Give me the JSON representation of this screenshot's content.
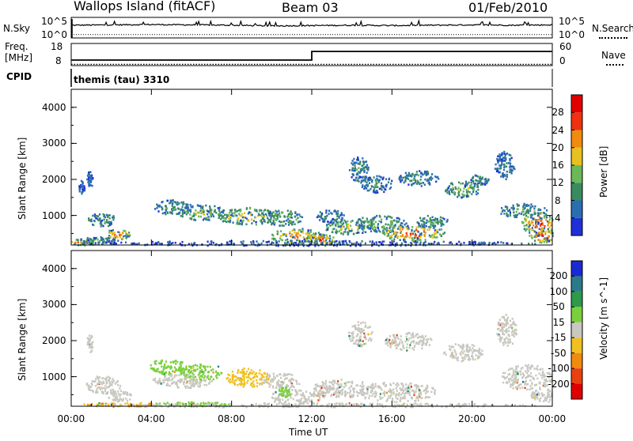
{
  "header": {
    "station": "Wallops Island (fitACF)",
    "beam": "Beam 03",
    "date": "01/Feb/2010"
  },
  "top_panels": {
    "nsky_label": "N.Sky",
    "nsky_tick_top": "10^5",
    "nsky_tick_bottom": "10^0",
    "nsearch_label": "N.Search",
    "nsearch_tick_top": "10^5",
    "nsearch_tick_bottom": "10^0",
    "freq_label_line1": "Freq.",
    "freq_label_line2": "[MHz]",
    "freq_tick_top": "18",
    "freq_tick_bottom": "8",
    "nave_label": "Nave",
    "nave_tick_top": "60",
    "nave_tick_bottom": "0",
    "cpid_label": "CPID",
    "cpid_value": "themis (tau) 3310"
  },
  "axes": {
    "ylabel": "Slant Range [km]",
    "y_ticks": [
      "1000",
      "2000",
      "3000",
      "4000"
    ],
    "x_ticks": [
      "00:00",
      "04:00",
      "08:00",
      "12:00",
      "16:00",
      "20:00",
      "00:00"
    ],
    "xlabel": "Time UT"
  },
  "power_colorbar": {
    "label": "Power [dB]",
    "ticks": [
      "4",
      "8",
      "12",
      "16",
      "20",
      "24",
      "28"
    ],
    "colors": [
      "#2030d8",
      "#2a6eb0",
      "#3a8a60",
      "#6ab85a",
      "#e8c020",
      "#f08a10",
      "#f03010",
      "#e00000"
    ]
  },
  "velocity_colorbar": {
    "label": "Velocity [m s^-1]",
    "ticks": [
      "200",
      "100",
      "50",
      "15",
      "-15",
      "-50",
      "-100",
      "-200"
    ],
    "colors": [
      "#1a2ad0",
      "#2a7a8a",
      "#2e9a4a",
      "#7ad03a",
      "#c8c8c0",
      "#f0c020",
      "#f08a10",
      "#e84010",
      "#e00000"
    ]
  },
  "chart_data": [
    {
      "type": "line",
      "title": "N.Sky / N.Search",
      "x": [
        "00:00",
        "02:00",
        "04:00",
        "06:00",
        "08:00",
        "10:00",
        "12:00",
        "14:00",
        "16:00",
        "18:00",
        "20:00",
        "22:00",
        "24:00"
      ],
      "series": [
        {
          "name": "N.Sky",
          "values": [
            3.2,
            3.3,
            3.4,
            3.3,
            3.2,
            3.0,
            3.1,
            3.2,
            3.1,
            3.2,
            3.3,
            3.2,
            3.3
          ]
        },
        {
          "name": "N.Search",
          "values": [
            0.5,
            0.5,
            0.5,
            0.5,
            0.5,
            0.5,
            0.5,
            0.5,
            0.5,
            0.5,
            0.5,
            0.5,
            0.5
          ]
        }
      ],
      "ylim": [
        0,
        5
      ]
    },
    {
      "type": "line",
      "title": "Freq. / Nave",
      "x": [
        "00:00",
        "12:00",
        "12:00",
        "24:00"
      ],
      "series": [
        {
          "name": "Freq. [MHz]",
          "values": [
            10.5,
            10.5,
            14.4,
            14.4
          ]
        },
        {
          "name": "Nave",
          "values": [
            10,
            10,
            10,
            10
          ]
        }
      ],
      "ylim": [
        8,
        18
      ]
    },
    {
      "type": "heatmap",
      "title": "Power [dB]",
      "xlabel": "Time UT",
      "ylabel": "Slant Range [km]",
      "xlim": [
        0,
        24
      ],
      "ylim": [
        180,
        4500
      ],
      "blobs": [
        {
          "t": 0.9,
          "r": 2000,
          "dt": 0.15,
          "dr": 250,
          "v": 8
        },
        {
          "t": 0.5,
          "r": 1800,
          "dt": 0.15,
          "dr": 200,
          "v": 6
        },
        {
          "t": 1.5,
          "r": 900,
          "dt": 0.7,
          "dr": 200,
          "v": 14
        },
        {
          "t": 2.3,
          "r": 500,
          "dt": 0.6,
          "dr": 160,
          "v": 27
        },
        {
          "t": 0.5,
          "r": 280,
          "dt": 0.6,
          "dr": 90,
          "v": 26
        },
        {
          "t": 1.3,
          "r": 320,
          "dt": 1.0,
          "dr": 120,
          "v": 14
        },
        {
          "t": 5.0,
          "r": 1250,
          "dt": 1.0,
          "dr": 200,
          "v": 12
        },
        {
          "t": 6.5,
          "r": 1100,
          "dt": 1.2,
          "dr": 220,
          "v": 18
        },
        {
          "t": 8.8,
          "r": 1000,
          "dt": 1.6,
          "dr": 240,
          "v": 22
        },
        {
          "t": 10.5,
          "r": 950,
          "dt": 1.0,
          "dr": 230,
          "v": 17
        },
        {
          "t": 11.2,
          "r": 450,
          "dt": 1.3,
          "dr": 220,
          "v": 26
        },
        {
          "t": 12.4,
          "r": 350,
          "dt": 0.8,
          "dr": 160,
          "v": 28
        },
        {
          "t": 13.8,
          "r": 700,
          "dt": 1.2,
          "dr": 200,
          "v": 20
        },
        {
          "t": 12.9,
          "r": 1000,
          "dt": 0.7,
          "dr": 180,
          "v": 10
        },
        {
          "t": 15.4,
          "r": 800,
          "dt": 1.3,
          "dr": 230,
          "v": 16
        },
        {
          "t": 17.0,
          "r": 550,
          "dt": 1.6,
          "dr": 230,
          "v": 28
        },
        {
          "t": 18.0,
          "r": 850,
          "dt": 0.8,
          "dr": 180,
          "v": 14
        },
        {
          "t": 14.3,
          "r": 2300,
          "dt": 0.5,
          "dr": 350,
          "v": 12
        },
        {
          "t": 15.2,
          "r": 1900,
          "dt": 0.8,
          "dr": 250,
          "v": 11
        },
        {
          "t": 17.3,
          "r": 2050,
          "dt": 1.0,
          "dr": 220,
          "v": 13
        },
        {
          "t": 19.5,
          "r": 1750,
          "dt": 0.9,
          "dr": 230,
          "v": 17
        },
        {
          "t": 20.3,
          "r": 2000,
          "dt": 0.5,
          "dr": 150,
          "v": 12
        },
        {
          "t": 21.6,
          "r": 2400,
          "dt": 0.5,
          "dr": 400,
          "v": 9
        },
        {
          "t": 22.5,
          "r": 1150,
          "dt": 1.2,
          "dr": 200,
          "v": 14
        },
        {
          "t": 23.3,
          "r": 800,
          "dt": 0.9,
          "dr": 300,
          "v": 28
        },
        {
          "t": 23.5,
          "r": 450,
          "dt": 0.7,
          "dr": 180,
          "v": 29
        },
        {
          "t": 12.0,
          "r": 250,
          "dt": 11.5,
          "dr": 70,
          "v": 6
        }
      ]
    },
    {
      "type": "heatmap",
      "title": "Velocity [m s^-1]",
      "xlabel": "Time UT",
      "ylabel": "Slant Range [km]",
      "xlim": [
        0,
        24
      ],
      "ylim": [
        180,
        4500
      ],
      "blobs": [
        {
          "t": 0.9,
          "r": 1950,
          "dt": 0.15,
          "dr": 250,
          "v": -5
        },
        {
          "t": 1.6,
          "r": 800,
          "dt": 0.9,
          "dr": 250,
          "v": -5
        },
        {
          "t": 2.4,
          "r": 480,
          "dt": 0.6,
          "dr": 150,
          "v": -5
        },
        {
          "t": 4.8,
          "r": 1300,
          "dt": 0.9,
          "dr": 220,
          "v": 30
        },
        {
          "t": 6.5,
          "r": 1150,
          "dt": 1.1,
          "dr": 240,
          "v": 25
        },
        {
          "t": 5.5,
          "r": 900,
          "dt": 1.5,
          "dr": 200,
          "v": -5
        },
        {
          "t": 8.8,
          "r": 1000,
          "dt": 1.1,
          "dr": 260,
          "v": -30
        },
        {
          "t": 10.4,
          "r": 900,
          "dt": 1.0,
          "dr": 230,
          "v": -5
        },
        {
          "t": 11.2,
          "r": 450,
          "dt": 1.4,
          "dr": 220,
          "v": -5
        },
        {
          "t": 10.6,
          "r": 600,
          "dt": 0.3,
          "dr": 150,
          "v": 30
        },
        {
          "t": 13.5,
          "r": 700,
          "dt": 1.5,
          "dr": 250,
          "v": -5
        },
        {
          "t": 16.2,
          "r": 600,
          "dt": 2.0,
          "dr": 280,
          "v": -5
        },
        {
          "t": 14.4,
          "r": 2200,
          "dt": 0.6,
          "dr": 350,
          "v": -5
        },
        {
          "t": 16.8,
          "r": 2000,
          "dt": 1.2,
          "dr": 250,
          "v": -5
        },
        {
          "t": 19.5,
          "r": 1700,
          "dt": 1.0,
          "dr": 250,
          "v": -5
        },
        {
          "t": 21.7,
          "r": 2300,
          "dt": 0.5,
          "dr": 450,
          "v": -5
        },
        {
          "t": 22.7,
          "r": 1000,
          "dt": 1.3,
          "dr": 350,
          "v": -5
        },
        {
          "t": 23.5,
          "r": 500,
          "dt": 0.6,
          "dr": 200,
          "v": -5
        },
        {
          "t": 2.5,
          "r": 250,
          "dt": 2.0,
          "dr": 60,
          "v": -50
        },
        {
          "t": 6.0,
          "r": 260,
          "dt": 2.0,
          "dr": 60,
          "v": 30
        },
        {
          "t": 12.0,
          "r": 230,
          "dt": 11.5,
          "dr": 60,
          "v": -5
        }
      ]
    }
  ]
}
